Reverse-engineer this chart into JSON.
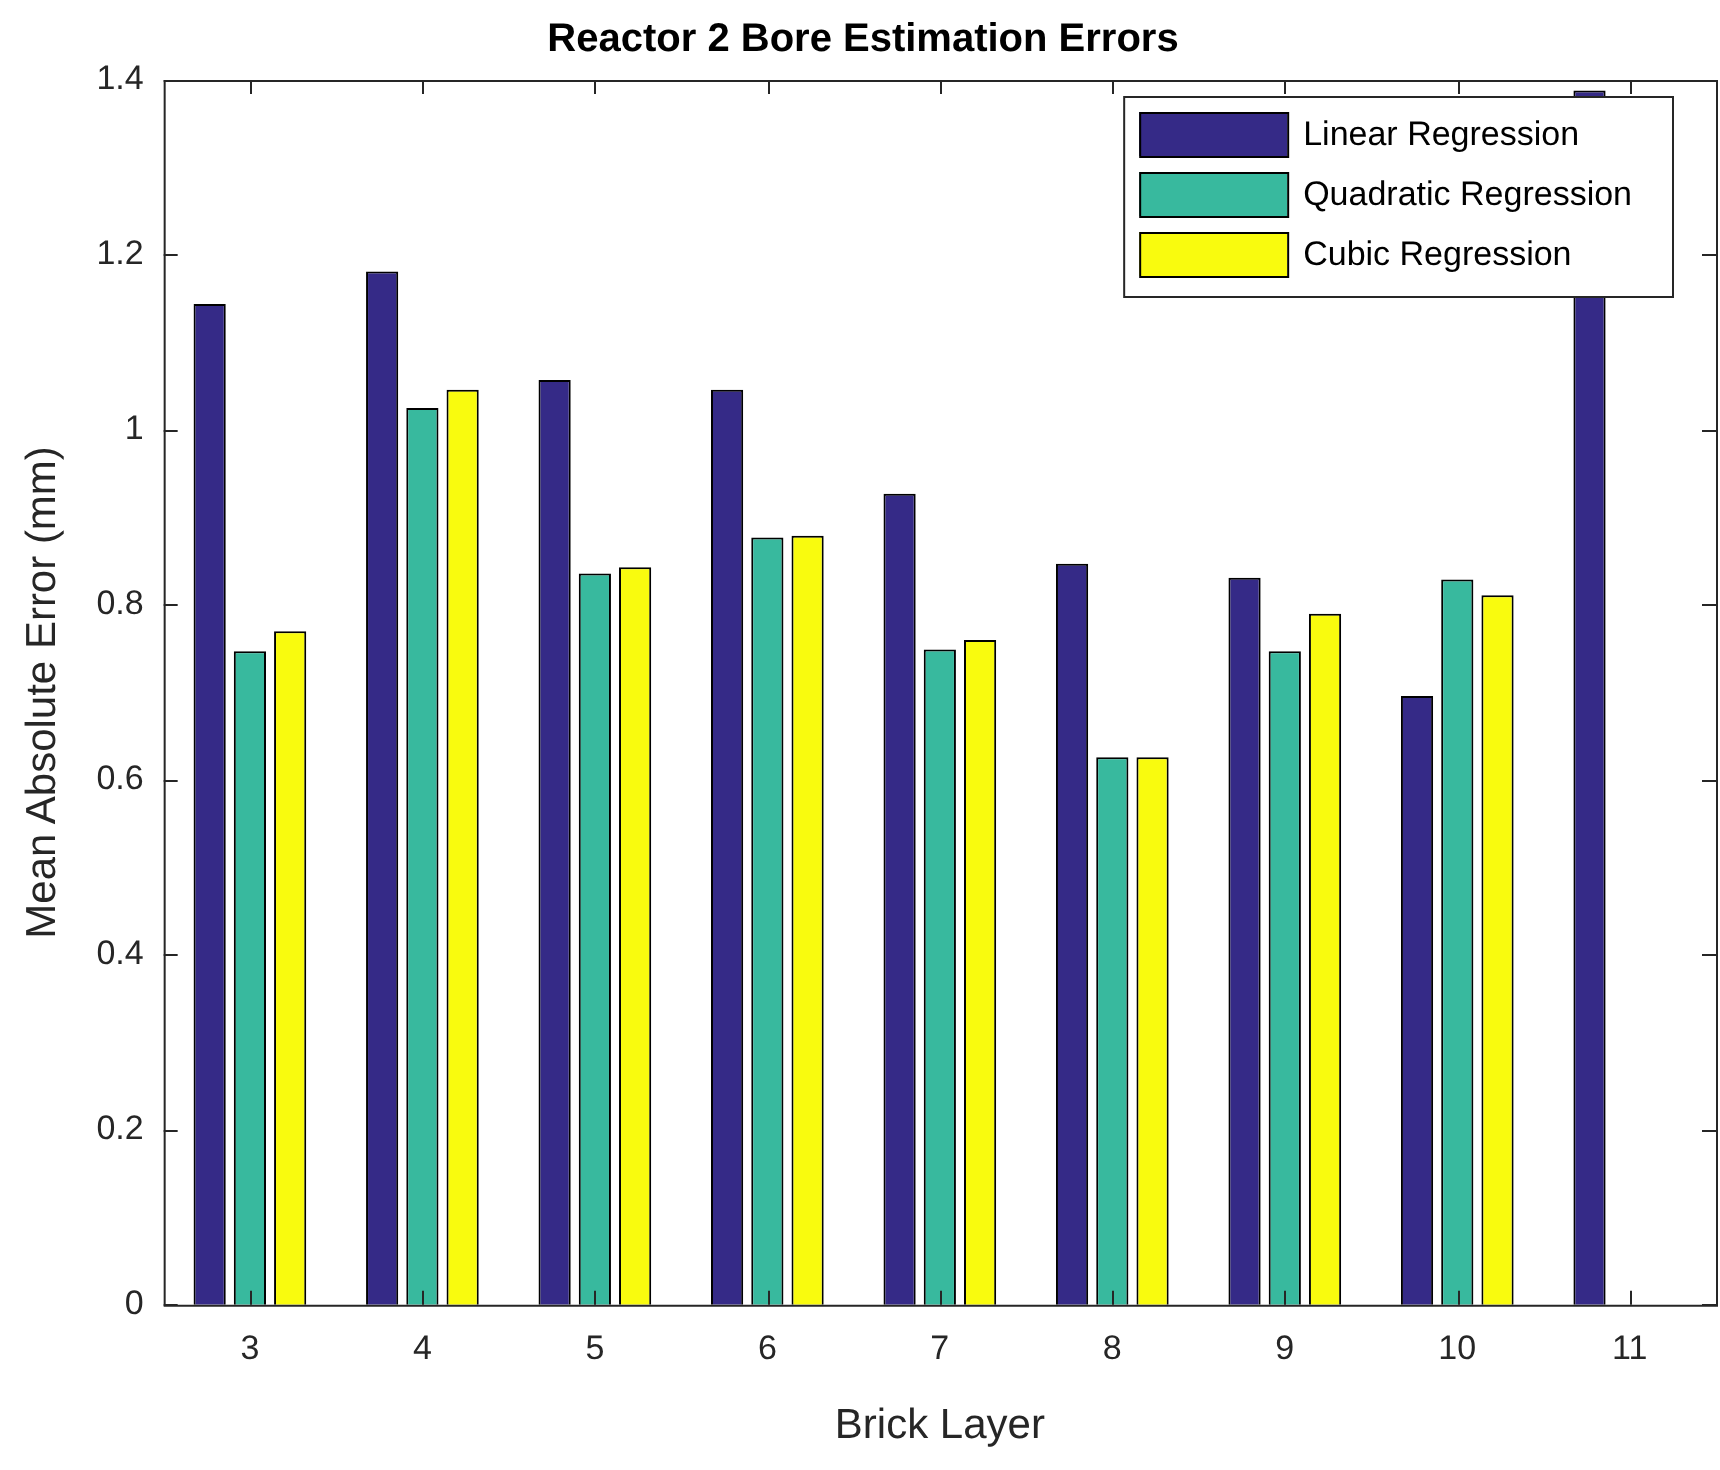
{
  "chart_data": {
    "type": "bar",
    "title": "Reactor 2 Bore Estimation Errors",
    "xlabel": "Brick Layer",
    "ylabel": "Mean Absolute Error (mm)",
    "categories": [
      "3",
      "4",
      "5",
      "6",
      "7",
      "8",
      "9",
      "10",
      "11"
    ],
    "series": [
      {
        "name": "Linear Regression",
        "color": "#352a87",
        "values": [
          1.144,
          1.181,
          1.057,
          1.046,
          0.927,
          0.847,
          0.831,
          0.696,
          1.388
        ]
      },
      {
        "name": "Quadratic Regression",
        "color": "#38b99e",
        "values": [
          0.747,
          1.025,
          0.836,
          0.877,
          0.749,
          0.626,
          0.747,
          0.829,
          null
        ]
      },
      {
        "name": "Cubic Regression",
        "color": "#f9fb0e",
        "values": [
          0.77,
          1.046,
          0.843,
          0.879,
          0.76,
          0.626,
          0.79,
          0.811,
          null
        ]
      }
    ],
    "ylim": [
      0,
      1.4
    ],
    "yticks": [
      0,
      0.2,
      0.4,
      0.6,
      0.8,
      1,
      1.2,
      1.4
    ],
    "grid": false,
    "legend": "top right"
  }
}
